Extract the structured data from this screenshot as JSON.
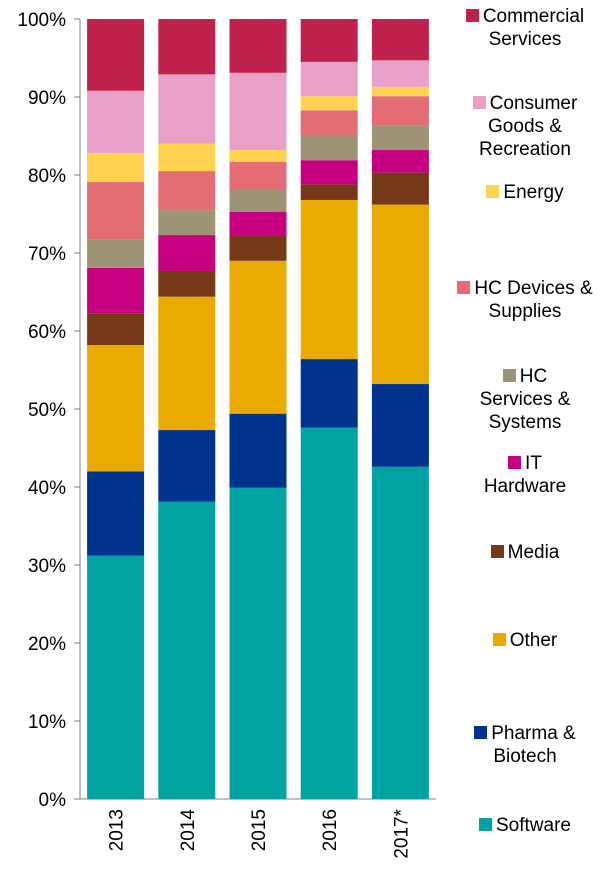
{
  "chart_data": {
    "type": "stacked_bar",
    "categories": [
      "2013",
      "2014",
      "2015",
      "2016",
      "2017*"
    ],
    "ylim": [
      0,
      100
    ],
    "yticks": [
      {
        "value": 0,
        "label": "0%"
      },
      {
        "value": 10,
        "label": "10%"
      },
      {
        "value": 20,
        "label": "20%"
      },
      {
        "value": 30,
        "label": "30%"
      },
      {
        "value": 40,
        "label": "40%"
      },
      {
        "value": 50,
        "label": "50%"
      },
      {
        "value": 60,
        "label": "60%"
      },
      {
        "value": 70,
        "label": "70%"
      },
      {
        "value": 80,
        "label": "80%"
      },
      {
        "value": 90,
        "label": "90%"
      },
      {
        "value": 100,
        "label": "100%"
      }
    ],
    "legend": "right",
    "series": [
      {
        "name": "Software",
        "color": "#00a3a1",
        "values": [
          31.2,
          38.1,
          39.9,
          47.6,
          42.6
        ]
      },
      {
        "name": "Pharma & Biotech",
        "color": "#00338d",
        "values": [
          10.8,
          9.2,
          9.5,
          8.8,
          10.6
        ]
      },
      {
        "name": "Other",
        "color": "#eaaa00",
        "values": [
          16.2,
          17.1,
          19.6,
          20.4,
          23.0
        ]
      },
      {
        "name": "Media",
        "color": "#753918",
        "values": [
          4.0,
          3.3,
          3.3,
          2.0,
          4.1
        ]
      },
      {
        "name": "IT Hardware",
        "color": "#c6007e",
        "values": [
          5.9,
          4.6,
          3.0,
          3.1,
          2.9
        ]
      },
      {
        "name": "HC Services & Systems",
        "color": "#9d9375",
        "values": [
          3.6,
          3.2,
          2.9,
          3.1,
          3.1
        ]
      },
      {
        "name": "HC Devices & Supplies",
        "color": "#e36c75",
        "values": [
          7.4,
          5.0,
          3.5,
          3.3,
          3.8
        ]
      },
      {
        "name": "Energy",
        "color": "#ffd24f",
        "values": [
          3.7,
          3.5,
          1.5,
          1.8,
          1.2
        ]
      },
      {
        "name": "Consumer Goods & Recreation",
        "color": "#e8a0c8",
        "values": [
          8.0,
          8.9,
          9.9,
          4.4,
          3.4
        ]
      },
      {
        "name": "Commercial Services",
        "color": "#c0224d",
        "values": [
          9.2,
          7.1,
          6.9,
          5.5,
          5.3
        ]
      }
    ]
  }
}
